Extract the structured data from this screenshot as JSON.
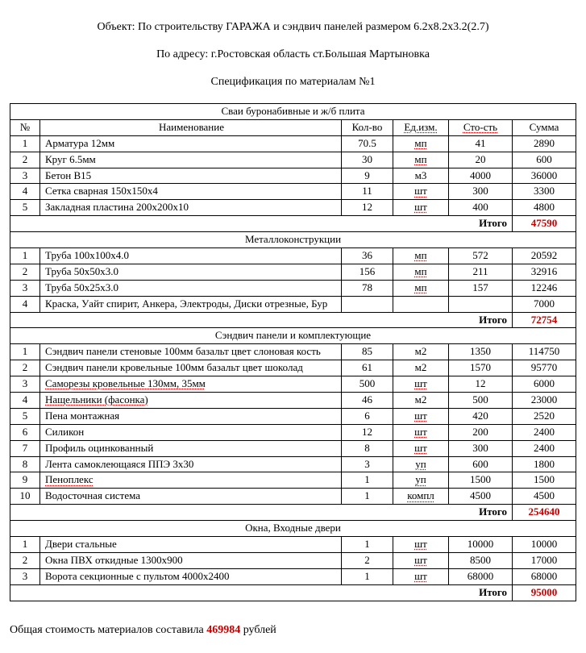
{
  "header": {
    "line1": "Объект: По строительству ГАРАЖА и сэндвич панелей размером 6.2х8.2х3.2(2.7)",
    "line2": "По адресу: г.Ростовская область ст.Большая Мартыновка",
    "line3": "Спецификация по материалам №1"
  },
  "columns": {
    "num": "№",
    "name": "Наименование",
    "qty": "Кол-во",
    "unit": "Ед.изм.",
    "cost": "Сто-сть",
    "sum": "Сумма"
  },
  "sections": [
    {
      "title": "Сваи буронабивные и ж/б плита",
      "rows": [
        {
          "n": "1",
          "name": "Арматура 12мм",
          "qty": "70.5",
          "unit": "мп",
          "cost": "41",
          "sum": "2890",
          "u_unit": true
        },
        {
          "n": "2",
          "name": "Круг 6.5мм",
          "qty": "30",
          "unit": "мп",
          "cost": "20",
          "sum": "600",
          "u_unit": true
        },
        {
          "n": "3",
          "name": "Бетон В15",
          "qty": "9",
          "unit": "м3",
          "cost": "4000",
          "sum": "36000"
        },
        {
          "n": "4",
          "name": "Сетка сварная 150х150х4",
          "qty": "11",
          "unit": "шт",
          "cost": "300",
          "sum": "3300",
          "u_unit": true
        },
        {
          "n": "5",
          "name": "Закладная пластина 200х200х10",
          "qty": "12",
          "unit": "шт",
          "cost": "400",
          "sum": "4800",
          "u_unit": true
        }
      ],
      "subtotal_label": "Итого",
      "subtotal": "47590"
    },
    {
      "title": "Металлоконструкции",
      "rows": [
        {
          "n": "1",
          "name": "Труба 100х100х4.0",
          "qty": "36",
          "unit": "мп",
          "cost": "572",
          "sum": "20592",
          "u_unit": true
        },
        {
          "n": "2",
          "name": "Труба 50х50х3.0",
          "qty": "156",
          "unit": "мп",
          "cost": "211",
          "sum": "32916",
          "u_unit": true
        },
        {
          "n": "3",
          "name": "Труба 50х25х3.0",
          "qty": "78",
          "unit": "мп",
          "cost": "157",
          "sum": "12246",
          "u_unit": true
        },
        {
          "n": "4",
          "name": "Краска, Уайт спирит, Анкера, Электроды, Диски отрезные, Бур",
          "qty": "",
          "unit": "",
          "cost": "",
          "sum": "7000"
        }
      ],
      "subtotal_label": "Итого",
      "subtotal": "72754"
    },
    {
      "title": "Сэндвич панели и комплектующие",
      "rows": [
        {
          "n": "1",
          "name": "Сэндвич панели стеновые 100мм базальт цвет слоновая кость",
          "qty": "85",
          "unit": "м2",
          "cost": "1350",
          "sum": "114750"
        },
        {
          "n": "2",
          "name": "Сэндвич панели кровельные 100мм базальт цвет шоколад",
          "qty": "61",
          "unit": "м2",
          "cost": "1570",
          "sum": "95770"
        },
        {
          "n": "3",
          "name": "Саморезы кровельные 130мм, 35мм",
          "qty": "500",
          "unit": "шт",
          "cost": "12",
          "sum": "6000",
          "u_name": true,
          "u_unit": true
        },
        {
          "n": "4",
          "name": "Нащельники (фасонка)",
          "qty": "46",
          "unit": "м2",
          "cost": "500",
          "sum": "23000",
          "u_name": true
        },
        {
          "n": "5",
          "name": "Пена монтажная",
          "qty": "6",
          "unit": "шт",
          "cost": "420",
          "sum": "2520",
          "u_unit": true
        },
        {
          "n": "6",
          "name": "Силикон",
          "qty": "12",
          "unit": "шт",
          "cost": "200",
          "sum": "2400",
          "u_unit": true
        },
        {
          "n": "7",
          "name": "Профиль оцинкованный",
          "qty": "8",
          "unit": "шт",
          "cost": "300",
          "sum": "2400",
          "u_unit": true
        },
        {
          "n": "8",
          "name": "Лента самоклеющаяся ППЭ 3х30",
          "qty": "3",
          "unit": "уп",
          "cost": "600",
          "sum": "1800",
          "u_unit": true
        },
        {
          "n": "9",
          "name": "Пеноплекс",
          "qty": "1",
          "unit": "уп",
          "cost": "1500",
          "sum": "1500",
          "u_name": true,
          "u_unit": true
        },
        {
          "n": "10",
          "name": "Водосточная система",
          "qty": "1",
          "unit": "компл",
          "cost": "4500",
          "sum": "4500",
          "u_unit": true
        }
      ],
      "subtotal_label": "Итого",
      "subtotal": "254640"
    },
    {
      "title": "Окна, Входные двери",
      "rows": [
        {
          "n": "1",
          "name": "Двери стальные",
          "qty": "1",
          "unit": "шт",
          "cost": "10000",
          "sum": "10000",
          "u_unit": true
        },
        {
          "n": "2",
          "name": "Окна ПВХ  откидные 1300х900",
          "qty": "2",
          "unit": "шт",
          "cost": "8500",
          "sum": "17000",
          "u_unit": true
        },
        {
          "n": "3",
          "name": "Ворота секционные с пультом 4000х2400",
          "qty": "1",
          "unit": "шт",
          "cost": "68000",
          "sum": "68000",
          "u_unit": true
        }
      ],
      "subtotal_label": "Итого",
      "subtotal": "95000"
    }
  ],
  "grand_total": {
    "prefix": "Общая стоимость материалов составила ",
    "value": "469984",
    "suffix": "  рублей"
  }
}
